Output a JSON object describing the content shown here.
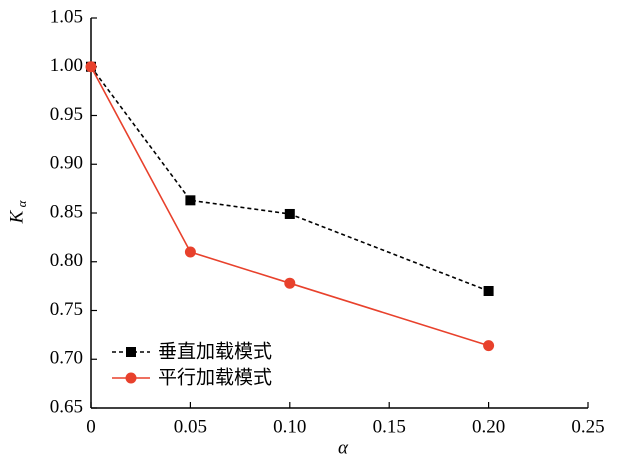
{
  "chart_data": {
    "type": "line",
    "xlabel": "α",
    "ylabel": "K",
    "ylabel_subscript": "α",
    "x": [
      0,
      0.05,
      0.1,
      0.2
    ],
    "series": [
      {
        "name": "垂直加载模式",
        "color": "#000000",
        "marker": "square",
        "linestyle": "dashed",
        "values": [
          1.0,
          0.863,
          0.849,
          0.77
        ]
      },
      {
        "name": "平行加载模式",
        "color": "#e8412c",
        "marker": "circle",
        "linestyle": "solid",
        "values": [
          1.0,
          0.81,
          0.778,
          0.714
        ]
      }
    ],
    "xlim": [
      0,
      0.25
    ],
    "xticks": [
      0,
      0.05,
      {
        "value": 0.1,
        "label": "0.10"
      },
      0.15,
      {
        "value": 0.2,
        "label": "0.20"
      },
      0.25
    ],
    "ylim": [
      0.65,
      1.05
    ],
    "yticks": [
      0.65,
      {
        "value": 0.7,
        "label": "0.70"
      },
      0.75,
      {
        "value": 0.8,
        "label": "0.80"
      },
      0.85,
      {
        "value": 0.9,
        "label": "0.90"
      },
      0.95,
      {
        "value": 1.0,
        "label": "1.00"
      },
      1.05
    ],
    "legend": "lower left",
    "grid": false
  }
}
